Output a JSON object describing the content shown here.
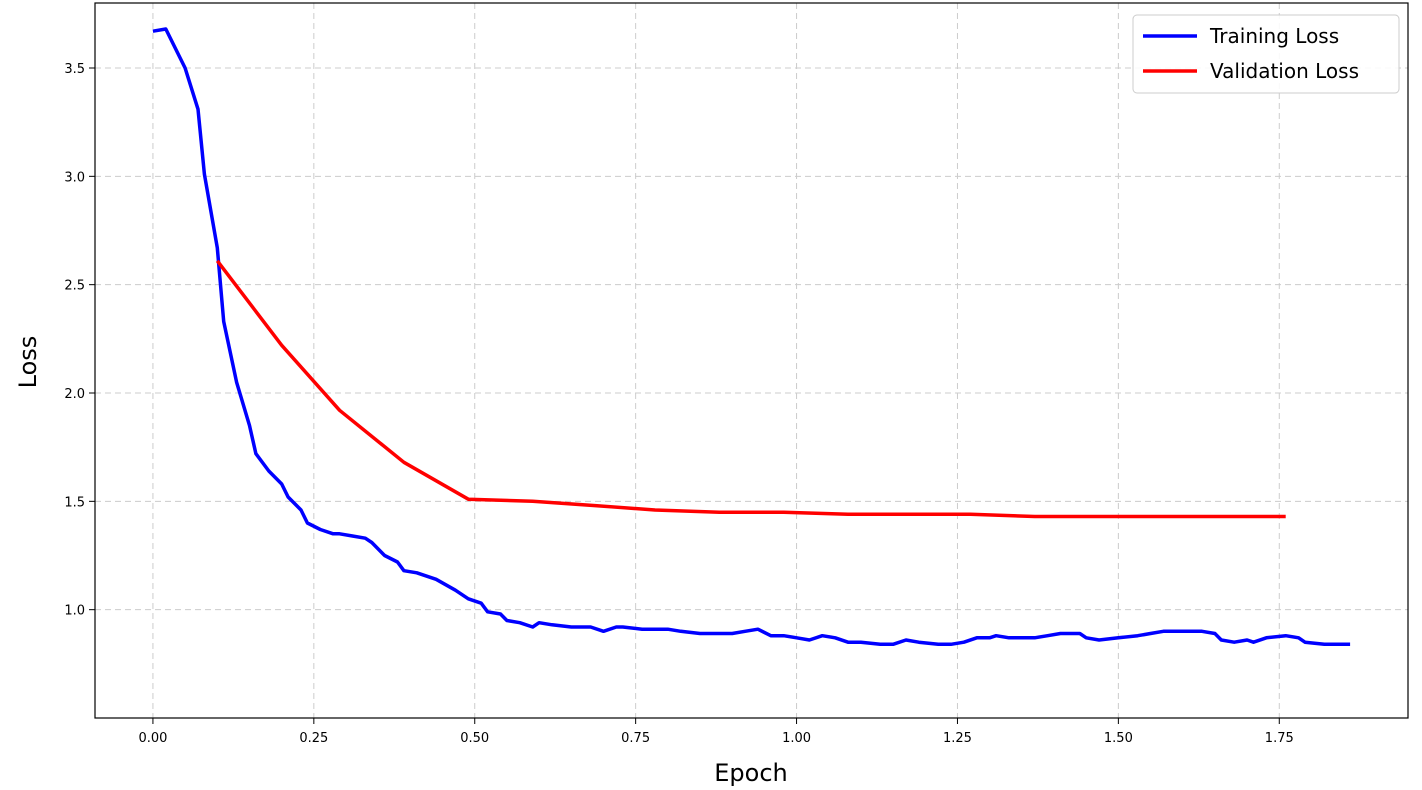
{
  "chart_data": {
    "type": "line",
    "xlabel": "Epoch",
    "ylabel": "Loss",
    "xlim": [
      -0.09,
      1.95
    ],
    "ylim": [
      0.5,
      3.8
    ],
    "x_ticks": [
      "0.00",
      "0.25",
      "0.50",
      "0.75",
      "1.00",
      "1.25",
      "1.50",
      "1.75"
    ],
    "y_ticks": [
      "1.0",
      "1.5",
      "2.0",
      "2.5",
      "3.0",
      "3.5"
    ],
    "grid": true,
    "legend_position": "top-right",
    "series": [
      {
        "name": "Training Loss",
        "color": "#0000ff",
        "points": [
          [
            0.0,
            3.67
          ],
          [
            0.02,
            3.68
          ],
          [
            0.05,
            3.5
          ],
          [
            0.07,
            3.31
          ],
          [
            0.08,
            3.01
          ],
          [
            0.1,
            2.67
          ],
          [
            0.11,
            2.33
          ],
          [
            0.13,
            2.05
          ],
          [
            0.15,
            1.85
          ],
          [
            0.16,
            1.72
          ],
          [
            0.18,
            1.64
          ],
          [
            0.2,
            1.58
          ],
          [
            0.21,
            1.52
          ],
          [
            0.23,
            1.46
          ],
          [
            0.24,
            1.4
          ],
          [
            0.26,
            1.37
          ],
          [
            0.28,
            1.35
          ],
          [
            0.29,
            1.35
          ],
          [
            0.31,
            1.34
          ],
          [
            0.33,
            1.33
          ],
          [
            0.34,
            1.31
          ],
          [
            0.36,
            1.25
          ],
          [
            0.38,
            1.22
          ],
          [
            0.39,
            1.18
          ],
          [
            0.41,
            1.17
          ],
          [
            0.44,
            1.14
          ],
          [
            0.47,
            1.09
          ],
          [
            0.49,
            1.05
          ],
          [
            0.51,
            1.03
          ],
          [
            0.52,
            0.99
          ],
          [
            0.54,
            0.98
          ],
          [
            0.55,
            0.95
          ],
          [
            0.57,
            0.94
          ],
          [
            0.59,
            0.92
          ],
          [
            0.6,
            0.94
          ],
          [
            0.62,
            0.93
          ],
          [
            0.65,
            0.92
          ],
          [
            0.68,
            0.92
          ],
          [
            0.7,
            0.9
          ],
          [
            0.72,
            0.92
          ],
          [
            0.73,
            0.92
          ],
          [
            0.76,
            0.91
          ],
          [
            0.78,
            0.91
          ],
          [
            0.8,
            0.91
          ],
          [
            0.82,
            0.9
          ],
          [
            0.85,
            0.89
          ],
          [
            0.88,
            0.89
          ],
          [
            0.9,
            0.89
          ],
          [
            0.92,
            0.9
          ],
          [
            0.94,
            0.91
          ],
          [
            0.96,
            0.88
          ],
          [
            0.98,
            0.88
          ],
          [
            1.0,
            0.87
          ],
          [
            1.02,
            0.86
          ],
          [
            1.04,
            0.88
          ],
          [
            1.06,
            0.87
          ],
          [
            1.08,
            0.85
          ],
          [
            1.1,
            0.85
          ],
          [
            1.13,
            0.84
          ],
          [
            1.15,
            0.84
          ],
          [
            1.17,
            0.86
          ],
          [
            1.19,
            0.85
          ],
          [
            1.22,
            0.84
          ],
          [
            1.24,
            0.84
          ],
          [
            1.26,
            0.85
          ],
          [
            1.28,
            0.87
          ],
          [
            1.3,
            0.87
          ],
          [
            1.31,
            0.88
          ],
          [
            1.33,
            0.87
          ],
          [
            1.35,
            0.87
          ],
          [
            1.37,
            0.87
          ],
          [
            1.39,
            0.88
          ],
          [
            1.41,
            0.89
          ],
          [
            1.44,
            0.89
          ],
          [
            1.45,
            0.87
          ],
          [
            1.47,
            0.86
          ],
          [
            1.5,
            0.87
          ],
          [
            1.53,
            0.88
          ],
          [
            1.55,
            0.89
          ],
          [
            1.57,
            0.9
          ],
          [
            1.59,
            0.9
          ],
          [
            1.62,
            0.9
          ],
          [
            1.63,
            0.9
          ],
          [
            1.65,
            0.89
          ],
          [
            1.66,
            0.86
          ],
          [
            1.68,
            0.85
          ],
          [
            1.7,
            0.86
          ],
          [
            1.71,
            0.85
          ],
          [
            1.73,
            0.87
          ],
          [
            1.76,
            0.88
          ],
          [
            1.78,
            0.87
          ],
          [
            1.79,
            0.85
          ],
          [
            1.82,
            0.84
          ],
          [
            1.84,
            0.84
          ],
          [
            1.86,
            0.84
          ]
        ]
      },
      {
        "name": "Validation Loss",
        "color": "#ff0000",
        "points": [
          [
            0.1,
            2.61
          ],
          [
            0.2,
            2.22
          ],
          [
            0.29,
            1.92
          ],
          [
            0.39,
            1.68
          ],
          [
            0.49,
            1.51
          ],
          [
            0.59,
            1.5
          ],
          [
            0.69,
            1.48
          ],
          [
            0.78,
            1.46
          ],
          [
            0.88,
            1.45
          ],
          [
            0.98,
            1.45
          ],
          [
            1.08,
            1.44
          ],
          [
            1.17,
            1.44
          ],
          [
            1.27,
            1.44
          ],
          [
            1.37,
            1.43
          ],
          [
            1.47,
            1.43
          ],
          [
            1.57,
            1.43
          ],
          [
            1.66,
            1.43
          ],
          [
            1.76,
            1.43
          ]
        ]
      }
    ]
  }
}
